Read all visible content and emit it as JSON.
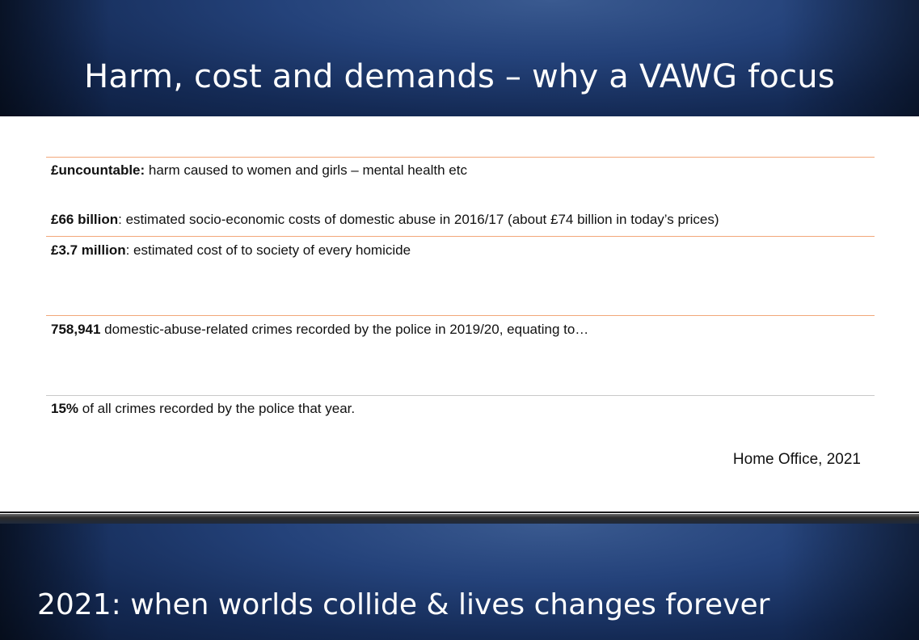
{
  "slide": {
    "title": "Harm, cost and demands – why a VAWG focus",
    "stats": [
      {
        "bold": "£uncountable:",
        "text": " harm caused to women and girls – mental health etc"
      },
      {
        "bold": "£66 billion",
        "text": ": estimated socio-economic costs of domestic abuse in 2016/17 (about £74 billion in today’s prices)"
      },
      {
        "bold": "£3.7 million",
        "text": ": estimated cost of to society of every homicide"
      },
      {
        "bold": "758,941",
        "text": " domestic-abuse-related crimes recorded by the police in 2019/20, equating to…"
      },
      {
        "bold": "15%",
        "text": " of all crimes recorded by the police that year."
      }
    ],
    "source": "Home Office, 2021"
  },
  "next_slide": {
    "title": "2021: when worlds collide & lives changes forever"
  },
  "colors": {
    "band_blue": "#24427a",
    "rule_orange": "#f2a77a",
    "rule_gray": "#c8c8c8"
  }
}
